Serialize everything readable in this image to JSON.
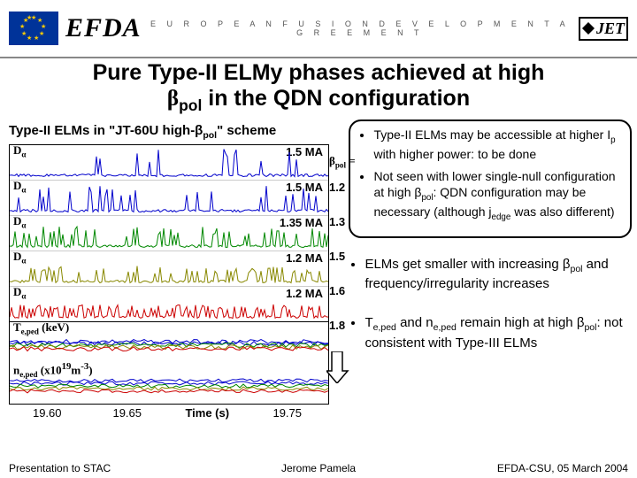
{
  "header": {
    "efda": "EFDA",
    "tagline": "E U R O P E A N   F U S I O N   D E V E L O P M E N T   A G R E E M E N T",
    "jet": "JET"
  },
  "title_line1": "Pure Type-II ELMy phases achieved at high",
  "title_line2_prefix": "β",
  "title_line2_sub": "pol",
  "title_line2_rest": " in the QDN configuration",
  "subtitle": "Type-II ELMs in \"JT-60U high-β",
  "subtitle_sub": "pol",
  "subtitle_end": "\" scheme",
  "panels": [
    {
      "label": "D",
      "labelsub": "α",
      "current": "1.5 MA",
      "color": "#0000cc",
      "beta": "1.2"
    },
    {
      "label": "D",
      "labelsub": "α",
      "current": "1.5 MA",
      "color": "#0000cc",
      "beta": "1.3"
    },
    {
      "label": "D",
      "labelsub": "α",
      "current": "1.35 MA",
      "color": "#008800",
      "beta": "1.5"
    },
    {
      "label": "D",
      "labelsub": "α",
      "current": "1.2 MA",
      "color": "#888800",
      "beta": "1.6"
    },
    {
      "label": "D",
      "labelsub": "α",
      "current": "1.2 MA",
      "color": "#cc0000",
      "beta": "1.8"
    }
  ],
  "beta_header": "β",
  "beta_header_sub": "pol",
  "beta_header_eq": " =",
  "pedestal": {
    "te_label": "T",
    "te_sub": "e,ped",
    "te_unit": " (keV)",
    "ne_label": "n",
    "ne_sub": "e,ped",
    "ne_unit_pre": " (x10",
    "ne_sup": "19",
    "ne_unit_post": "m",
    "ne_sup2": "-3",
    "ne_close": ")"
  },
  "pedestal_traces": {
    "te_colors": [
      "#0000cc",
      "#0000cc",
      "#008800",
      "#888800",
      "#cc0000"
    ],
    "ne_colors": [
      "#0000cc",
      "#0000cc",
      "#008800",
      "#888800",
      "#cc0000"
    ]
  },
  "xaxis": {
    "label": "Time (s)",
    "ticks": [
      "19.60",
      "19.65",
      "",
      "19.75"
    ]
  },
  "box_bullets": [
    "Type-II ELMs may be accessible at higher I<sub>p</sub> with higher power: to be done",
    "Not seen with lower single-null configuration at high β<sub>pol</sub>: QDN configuration may be necessary (although j<sub>edge</sub> was also different)"
  ],
  "right_bullets": [
    "ELMs get smaller with increasing β<sub>pol</sub> and frequency/irregularity increases",
    "T<sub>e,ped</sub> and n<sub>e,ped</sub> remain high at high β<sub>pol</sub>: not consistent with Type-III ELMs"
  ],
  "footer": {
    "left": "Presentation to STAC",
    "center": "Jerome Pamela",
    "right": "EFDA-CSU, 05 March 2004"
  }
}
